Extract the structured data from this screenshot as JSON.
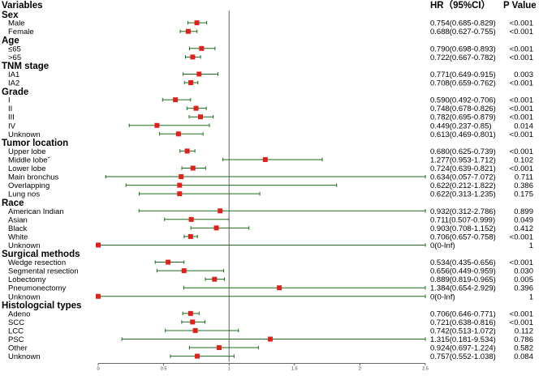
{
  "chart_data": {
    "type": "forest",
    "headers": {
      "variables": "Variables",
      "hr": "HR（95%CI）",
      "p": "P Value"
    },
    "x_ticks": [
      "0",
      "0.5",
      "1",
      "1.5",
      "2",
      "2.5"
    ],
    "xlim": [
      0,
      2.5
    ],
    "reference_line": 1,
    "series_color": "#1b6b1b",
    "marker_color": "#e0201b",
    "rows": [
      {
        "label": "Sex",
        "group": true
      },
      {
        "label": "Male",
        "hr": 0.754,
        "lo": 0.685,
        "hi": 0.829,
        "text": "0.754(0.685-0.829)",
        "p": "<0.001"
      },
      {
        "label": "Female",
        "hr": 0.688,
        "lo": 0.627,
        "hi": 0.755,
        "text": "0.688(0.627-0.755)",
        "p": "<0.001"
      },
      {
        "label": "Age",
        "group": true
      },
      {
        "label": "≤65",
        "hr": 0.79,
        "lo": 0.698,
        "hi": 0.893,
        "text": "0.790(0.698-0.893)",
        "p": "<0.001"
      },
      {
        "label": ">65",
        "hr": 0.722,
        "lo": 0.667,
        "hi": 0.782,
        "text": "0.722(0.667-0.782)",
        "p": "<0.001"
      },
      {
        "label": "TNM stage",
        "group": true
      },
      {
        "label": "IA1",
        "hr": 0.771,
        "lo": 0.649,
        "hi": 0.915,
        "text": "0.771(0.649-0.915)",
        "p": "0.003"
      },
      {
        "label": "IA2",
        "hr": 0.708,
        "lo": 0.659,
        "hi": 0.762,
        "text": "0.708(0.659-0.762)",
        "p": "<0.001"
      },
      {
        "label": "Grade",
        "group": true
      },
      {
        "label": "I",
        "hr": 0.59,
        "lo": 0.492,
        "hi": 0.706,
        "text": "0.590(0.492-0.706)",
        "p": "<0.001"
      },
      {
        "label": "II",
        "hr": 0.748,
        "lo": 0.678,
        "hi": 0.826,
        "text": "0.748(0.678-0.826)",
        "p": "<0.001"
      },
      {
        "label": "III",
        "hr": 0.782,
        "lo": 0.695,
        "hi": 0.879,
        "text": "0.782(0.695-0.879)",
        "p": "<0.001"
      },
      {
        "label": "IV",
        "hr": 0.449,
        "lo": 0.237,
        "hi": 0.85,
        "text": "0.449(0.237-0.85)",
        "p": "0.014"
      },
      {
        "label": "Unknown",
        "hr": 0.613,
        "lo": 0.469,
        "hi": 0.801,
        "text": "0.613(0.469-0.801)",
        "p": "<0.001"
      },
      {
        "label": "Tumor location",
        "group": true
      },
      {
        "label": "Upper lobe",
        "hr": 0.68,
        "lo": 0.625,
        "hi": 0.739,
        "text": "0.680(0.625-0.739)",
        "p": "<0.001"
      },
      {
        "label": "Middle lobeˇ",
        "hr": 1.277,
        "lo": 0.953,
        "hi": 1.712,
        "text": "1.277(0.953-1.712)",
        "p": "0.102"
      },
      {
        "label": "Lower lobe",
        "hr": 0.724,
        "lo": 0.639,
        "hi": 0.821,
        "text": "0.724(0.639-0.821)",
        "p": "<0.001"
      },
      {
        "label": "Main bronchus",
        "hr": 0.634,
        "lo": 0.057,
        "hi": 7.072,
        "text": "0.634(0.057-7.072)",
        "p": "0.711"
      },
      {
        "label": "Overlapping",
        "hr": 0.622,
        "lo": 0.212,
        "hi": 1.822,
        "text": "0.622(0.212-1.822)",
        "p": "0.386"
      },
      {
        "label": "Lung nos",
        "hr": 0.622,
        "lo": 0.313,
        "hi": 1.235,
        "text": "0.622(0.313-1.235)",
        "p": "0.175"
      },
      {
        "label": "Race",
        "group": true
      },
      {
        "label": "American Indian",
        "hr": 0.932,
        "lo": 0.312,
        "hi": 2.786,
        "text": "0.932(0.312-2.786)",
        "p": "0.899"
      },
      {
        "label": "Asian",
        "hr": 0.711,
        "lo": 0.507,
        "hi": 0.999,
        "text": "0.711(0.507-0.999)",
        "p": "0.049"
      },
      {
        "label": "Black",
        "hr": 0.903,
        "lo": 0.708,
        "hi": 1.152,
        "text": "0.903(0.708-1.152)",
        "p": "0.412"
      },
      {
        "label": "White",
        "hr": 0.706,
        "lo": 0.657,
        "hi": 0.758,
        "text": "0.706(0.657-0.758)",
        "p": "<0.001"
      },
      {
        "label": "Unknown",
        "hr": 0,
        "lo": 0,
        "hi": 2.5,
        "text": "0(0-Inf)",
        "p": "1"
      },
      {
        "label": "Surgical methods",
        "group": true
      },
      {
        "label": "Wedge resection",
        "hr": 0.534,
        "lo": 0.435,
        "hi": 0.656,
        "text": "0.534(0.435-0.656)",
        "p": "<0.001"
      },
      {
        "label": "Segmental resection",
        "hr": 0.656,
        "lo": 0.449,
        "hi": 0.959,
        "text": "0.656(0.449-0.959)",
        "p": "0.030"
      },
      {
        "label": "Lobectomy",
        "hr": 0.889,
        "lo": 0.819,
        "hi": 0.965,
        "text": "0.889(0.819-0.965)",
        "p": "0.005"
      },
      {
        "label": "Pneumonectomy",
        "hr": 1.384,
        "lo": 0.654,
        "hi": 2.929,
        "text": "1.384(0.654-2.929)",
        "p": "0.396"
      },
      {
        "label": "Unknown",
        "hr": 0,
        "lo": 0,
        "hi": 2.5,
        "text": "0(0-Inf)",
        "p": "1"
      },
      {
        "label": "Histologcial types",
        "group": true
      },
      {
        "label": "Adeno",
        "hr": 0.706,
        "lo": 0.646,
        "hi": 0.771,
        "text": "0.706(0.646-0.771)",
        "p": "<0.001"
      },
      {
        "label": "SCC",
        "hr": 0.721,
        "lo": 0.638,
        "hi": 0.816,
        "text": "0.721(0.638-0.816)",
        "p": "<0.001"
      },
      {
        "label": "LCC",
        "hr": 0.742,
        "lo": 0.513,
        "hi": 1.072,
        "text": "0.742(0.513-1.072)",
        "p": "0.112"
      },
      {
        "label": "PSC",
        "hr": 1.315,
        "lo": 0.181,
        "hi": 9.534,
        "text": "1.315(0.181-9.534)",
        "p": "0.786"
      },
      {
        "label": "Other",
        "hr": 0.924,
        "lo": 0.697,
        "hi": 1.224,
        "text": "0.924(0.697-1.224)",
        "p": "0.582"
      },
      {
        "label": "Unknown",
        "hr": 0.757,
        "lo": 0.552,
        "hi": 1.038,
        "text": "0.757(0.552-1.038)",
        "p": "0.084"
      }
    ]
  }
}
